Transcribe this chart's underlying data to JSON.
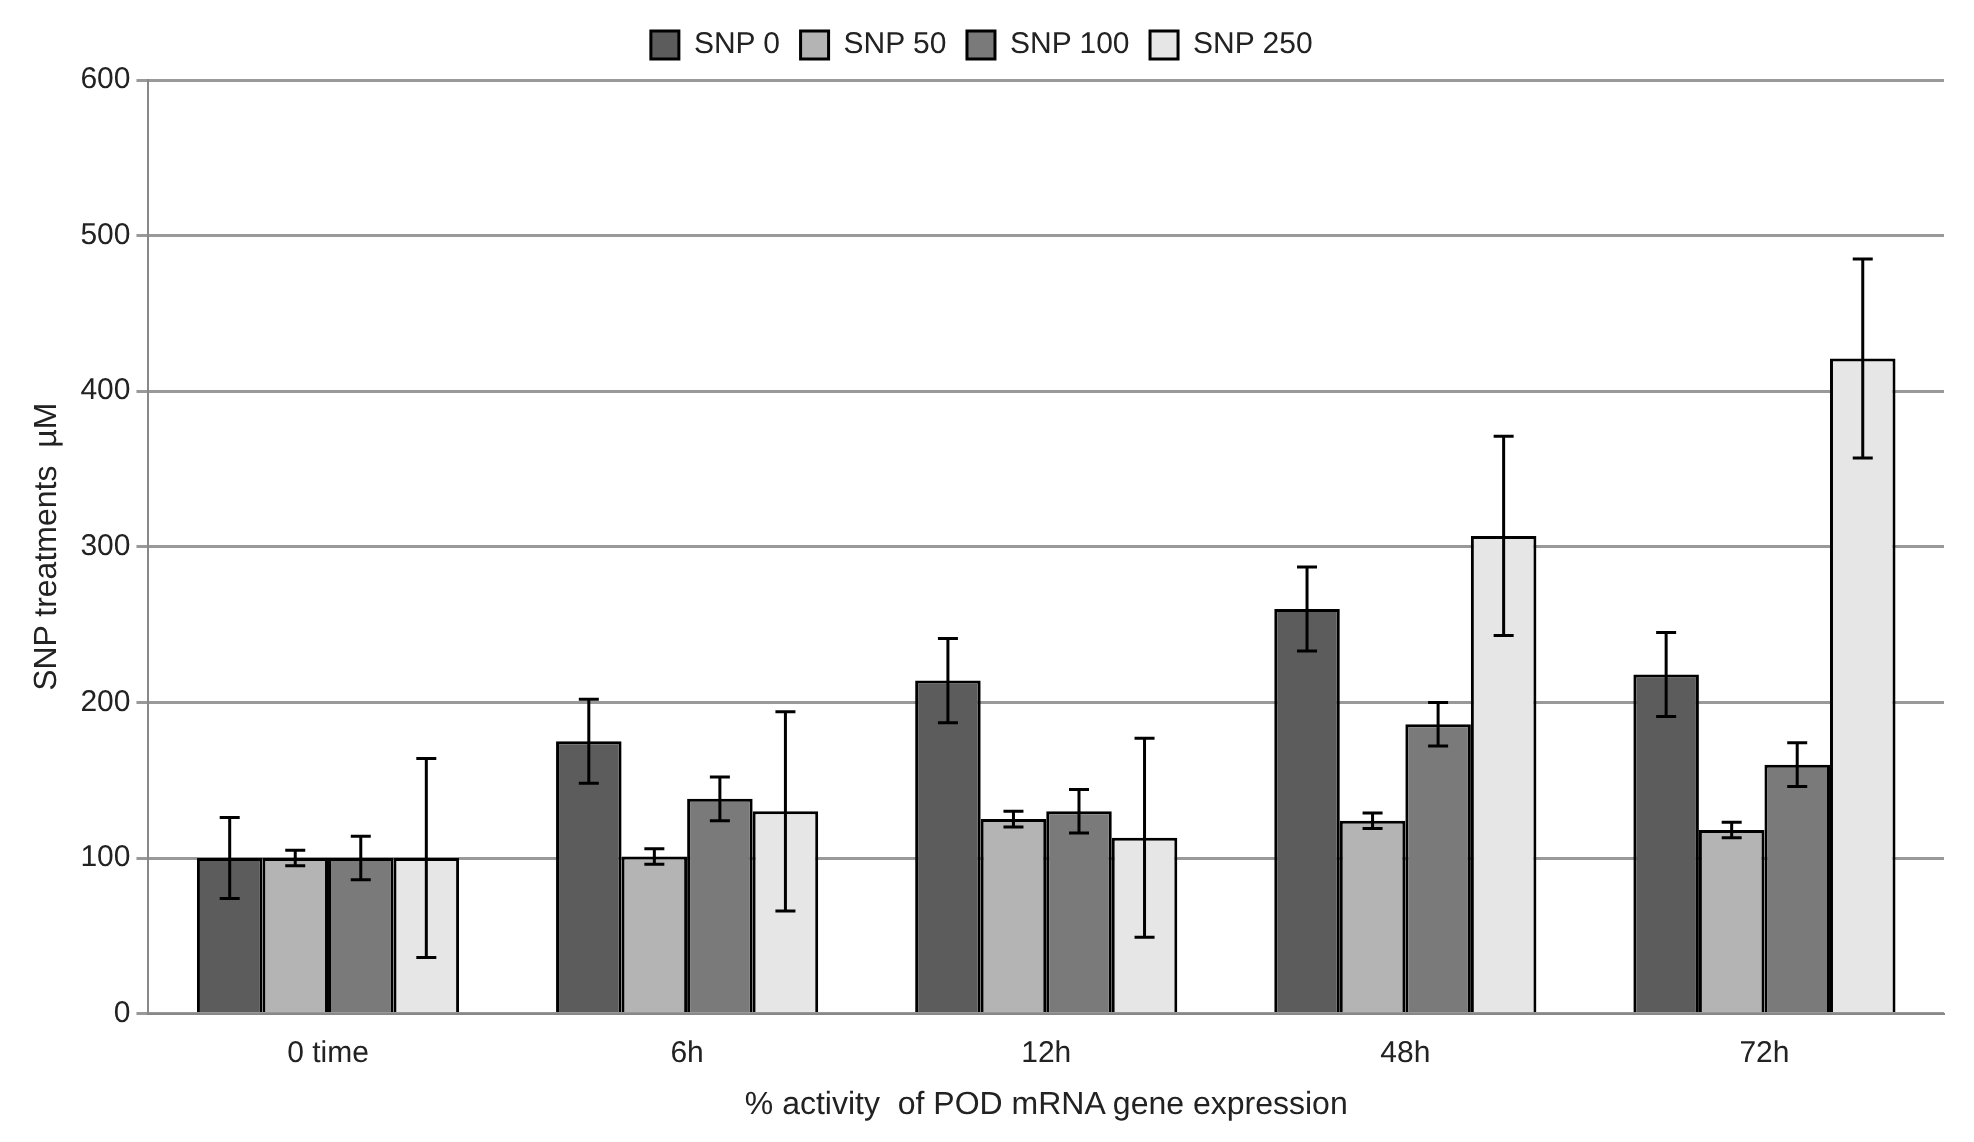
{
  "chart_data": {
    "type": "bar",
    "xlabel": "% activity  of POD mRNA gene expression",
    "ylabel": "SNP treatments  µM",
    "categories": [
      "0 time",
      "6h",
      "12h",
      "48h",
      "72h"
    ],
    "series": [
      {
        "name": "SNP 0",
        "color": "#5c5c5c",
        "values": [
          100,
          175,
          214,
          260,
          218
        ],
        "errors": [
          26,
          27,
          27,
          27,
          27
        ]
      },
      {
        "name": "SNP 50",
        "color": "#b4b4b4",
        "values": [
          100,
          101,
          125,
          124,
          118
        ],
        "errors": [
          5,
          5,
          5,
          5,
          5
        ]
      },
      {
        "name": "SNP 100",
        "color": "#7a7a7a",
        "values": [
          100,
          138,
          130,
          186,
          160
        ],
        "errors": [
          14,
          14,
          14,
          14,
          14
        ]
      },
      {
        "name": "SNP 250",
        "color": "#e6e6e6",
        "values": [
          100,
          130,
          113,
          307,
          421
        ],
        "errors": [
          64,
          64,
          64,
          64,
          64
        ]
      }
    ],
    "ylim": [
      0,
      600
    ],
    "yticks": [
      0,
      100,
      200,
      300,
      400,
      500,
      600
    ],
    "grid": "y",
    "legend": "top"
  }
}
